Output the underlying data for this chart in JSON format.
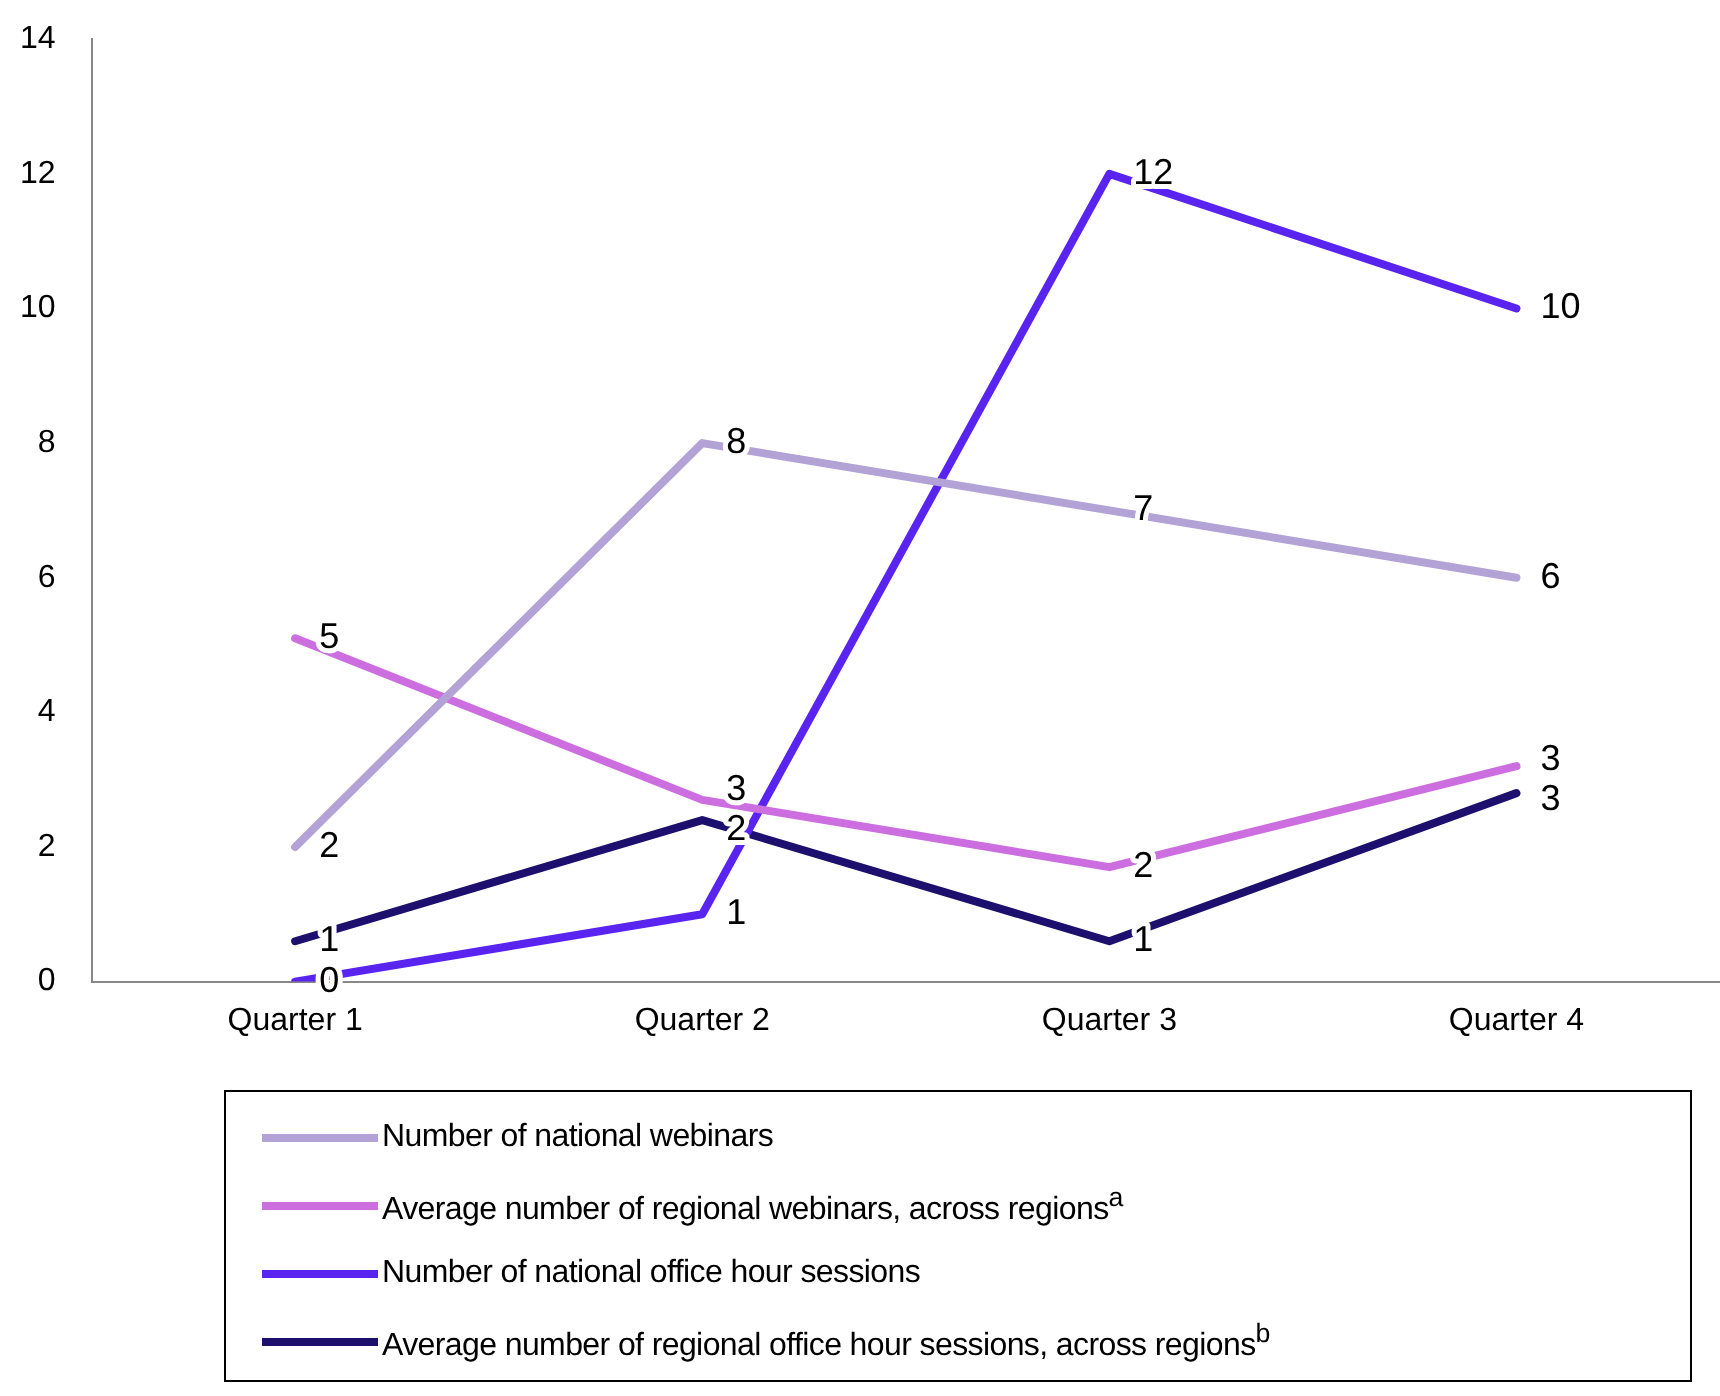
{
  "chart_data": {
    "type": "line",
    "categories": [
      "Quarter 1",
      "Quarter 2",
      "Quarter 3",
      "Quarter 4"
    ],
    "series": [
      {
        "name": "Number of national webinars",
        "color": "#b3a2d6",
        "values": [
          2,
          8,
          7,
          6
        ],
        "value_labels": [
          "2",
          "8",
          "7",
          "6"
        ]
      },
      {
        "name": "Average number of regional webinars, across regions$^{a}$",
        "color": "#cc6ee0",
        "values": [
          5.1,
          2.7,
          1.7,
          3.2
        ],
        "value_labels": [
          "5",
          "3",
          "2",
          "3"
        ]
      },
      {
        "name": "Number of national office hour sessions",
        "color": "#5a24f0",
        "values": [
          0,
          1,
          12,
          10
        ],
        "value_labels": [
          "0",
          "1",
          "12",
          "10"
        ]
      },
      {
        "name": "Average number of regional office hour sessions, across regions$^{b}$",
        "color": "#1d0f6e",
        "values": [
          0.6,
          2.4,
          0.6,
          2.8
        ],
        "value_labels": [
          "1",
          "2",
          "1",
          "3"
        ]
      }
    ],
    "ylim": [
      0,
      14
    ],
    "yticks": [
      0,
      2,
      4,
      6,
      8,
      10,
      12,
      14
    ],
    "grid": false,
    "legend": "bottom",
    "marker": "none",
    "line_style": "solid"
  }
}
